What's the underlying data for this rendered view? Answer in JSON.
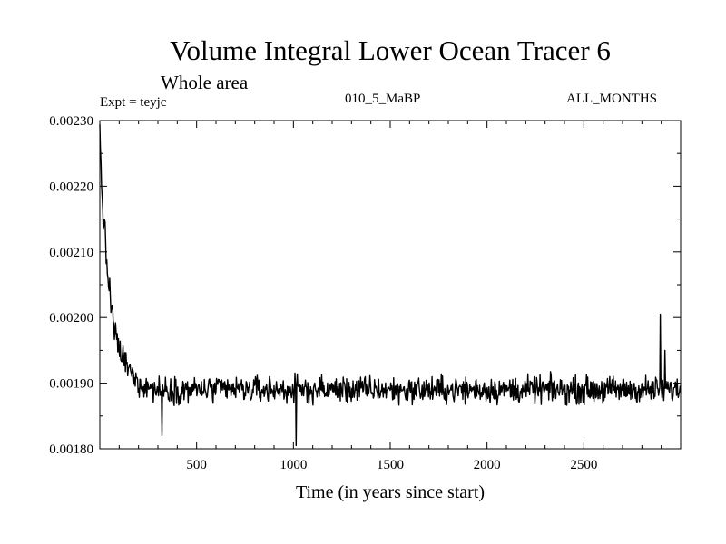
{
  "chart_data": {
    "type": "line",
    "title": "Volume Integral Lower Ocean Tracer 6",
    "subtitle": "Whole area",
    "experiment": "Expt = teyjc",
    "run_label": "010_5_MaBP",
    "period_label": "ALL_MONTHS",
    "xlabel": "Time (in years since start)",
    "ylabel": "",
    "xlim": [
      0,
      3000
    ],
    "ylim": [
      0.0018,
      0.0023
    ],
    "x_ticks": [
      500,
      1000,
      1500,
      2000,
      2500
    ],
    "x_tick_labels": [
      "500",
      "1000",
      "1500",
      "2000",
      "2500"
    ],
    "y_ticks": [
      0.0018,
      0.0019,
      0.002,
      0.0021,
      0.0022,
      0.0023
    ],
    "y_tick_labels": [
      "0.00180",
      "0.00190",
      "0.00200",
      "0.00210",
      "0.00220",
      "0.00230"
    ],
    "series": [
      {
        "name": "teyjc",
        "color": "#000000",
        "trend": {
          "x": [
            0,
            10,
            25,
            50,
            75,
            100,
            150,
            200,
            300,
            500,
            1000,
            1500,
            2000,
            2500,
            3000
          ],
          "y": [
            0.00228,
            0.0022,
            0.00212,
            0.00204,
            0.00198,
            0.00195,
            0.00192,
            0.0019,
            0.00189,
            0.00189,
            0.00189,
            0.00189,
            0.00189,
            0.00189,
            0.00189
          ]
        },
        "noise_amplitude": 3e-05,
        "extremes": [
          {
            "x": 1015,
            "y": 0.001805
          },
          {
            "x": 320,
            "y": 0.00182
          },
          {
            "x": 2895,
            "y": 0.002005
          },
          {
            "x": 2920,
            "y": 0.00195
          }
        ]
      }
    ]
  }
}
